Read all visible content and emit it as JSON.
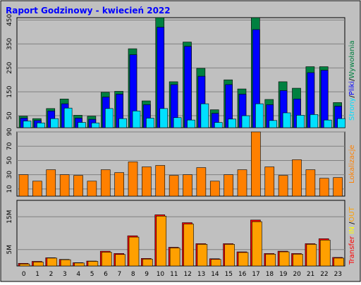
{
  "title": "Raport Godzinowy -  kwiecień 2022",
  "colors": {
    "background": "#FFFFFF",
    "outer_panel": "#C0C0C0",
    "plot_bg": "#C0C0C0",
    "grid": "#808080",
    "title": "#0000FF",
    "hits": "#008040",
    "files": "#0000FF",
    "pages": "#00E0FF",
    "visits": "#FF8000",
    "kbytes_in": "#FF0000",
    "kbytes_out": "#FFA000"
  },
  "chart_data": [
    {
      "type": "bar",
      "title": "",
      "x": [
        "0",
        "1",
        "2",
        "3",
        "4",
        "5",
        "6",
        "7",
        "8",
        "9",
        "10",
        "11",
        "12",
        "13",
        "14",
        "15",
        "16",
        "17",
        "18",
        "19",
        "20",
        "21",
        "22",
        "23"
      ],
      "ylim": [
        0,
        460
      ],
      "yticks": [
        "50",
        "150",
        "250",
        "350",
        "450"
      ],
      "legend": [
        {
          "text": "Strony",
          "color": "#00E0FF"
        },
        {
          "text": "/",
          "color": "#000000"
        },
        {
          "text": "Pliki",
          "color": "#0000FF"
        },
        {
          "text": "/",
          "color": "#000000"
        },
        {
          "text": "Wywołania",
          "color": "#008040"
        }
      ],
      "series": [
        {
          "name": "Wywołania",
          "values": [
            48,
            38,
            80,
            120,
            52,
            48,
            148,
            152,
            330,
            112,
            460,
            192,
            358,
            248,
            75,
            200,
            162,
            460,
            118,
            192,
            165,
            255,
            255,
            105
          ]
        },
        {
          "name": "Pliki",
          "values": [
            40,
            30,
            70,
            100,
            40,
            35,
            128,
            140,
            305,
            96,
            420,
            180,
            340,
            215,
            60,
            180,
            140,
            410,
            96,
            155,
            120,
            230,
            240,
            90
          ]
        },
        {
          "name": "Strony",
          "values": [
            28,
            20,
            38,
            82,
            22,
            20,
            80,
            38,
            70,
            40,
            80,
            42,
            32,
            100,
            22,
            36,
            50,
            100,
            30,
            62,
            52,
            55,
            32,
            38
          ]
        }
      ]
    },
    {
      "type": "bar",
      "title": "",
      "x": [
        "0",
        "1",
        "2",
        "3",
        "4",
        "5",
        "6",
        "7",
        "8",
        "9",
        "10",
        "11",
        "12",
        "13",
        "14",
        "15",
        "16",
        "17",
        "18",
        "19",
        "20",
        "21",
        "22",
        "23"
      ],
      "ylim": [
        0,
        90
      ],
      "yticks": [
        "10",
        "30",
        "50",
        "70",
        "90"
      ],
      "legend": [
        {
          "text": "Lokalizacje",
          "color": "#FF8000"
        }
      ],
      "series": [
        {
          "name": "Lokalizacje",
          "values": [
            30,
            21,
            37,
            30,
            29,
            21,
            37,
            33,
            48,
            41,
            43,
            29,
            30,
            40,
            21,
            30,
            37,
            90,
            41,
            29,
            51,
            37,
            25,
            26
          ]
        }
      ]
    },
    {
      "type": "bar",
      "title": "",
      "x": [
        "0",
        "1",
        "2",
        "3",
        "4",
        "5",
        "6",
        "7",
        "8",
        "9",
        "10",
        "11",
        "12",
        "13",
        "14",
        "15",
        "16",
        "17",
        "18",
        "19",
        "20",
        "21",
        "22",
        "23"
      ],
      "ylim": [
        0,
        20
      ],
      "yticks": [
        "5M",
        "15M"
      ],
      "legend": [
        {
          "text": "Transfer",
          "color": "#FF0000"
        },
        {
          "text": " IN ",
          "color": "#FFFF00"
        },
        {
          "text": "/",
          "color": "#000000"
        },
        {
          "text": "OUT",
          "color": "#FFA000"
        }
      ],
      "series": [
        {
          "name": "IN",
          "values": [
            0.8,
            1.4,
            2.5,
            2.0,
            1.0,
            1.5,
            4.5,
            3.8,
            9.2,
            2.3,
            15.6,
            5.7,
            13.2,
            6.8,
            2.2,
            6.8,
            4.3,
            14.0,
            3.8,
            4.5,
            3.8,
            6.8,
            8.3,
            2.6
          ]
        },
        {
          "name": "OUT",
          "values": [
            0.6,
            1.2,
            2.4,
            1.9,
            0.9,
            1.4,
            4.2,
            3.5,
            8.8,
            2.1,
            15.2,
            5.5,
            12.8,
            6.6,
            2.0,
            6.6,
            4.1,
            13.5,
            3.6,
            4.3,
            3.6,
            6.6,
            7.9,
            2.4
          ]
        }
      ]
    }
  ]
}
